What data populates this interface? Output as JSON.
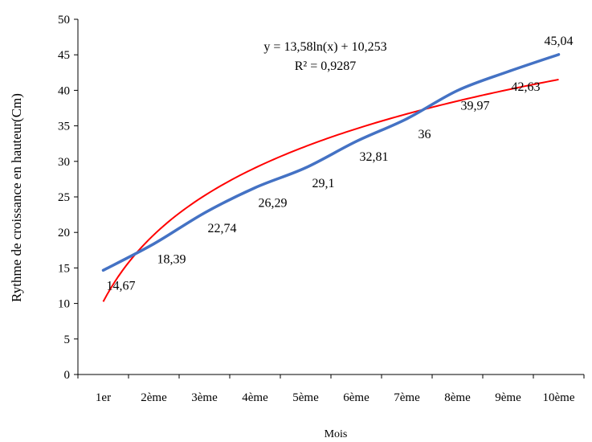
{
  "chart_data": {
    "type": "line",
    "categories": [
      "1er",
      "2ème",
      "3ème",
      "4ème",
      "5ème",
      "6ème",
      "7ème",
      "8ème",
      "9ème",
      "10ème"
    ],
    "series": [
      {
        "values": [
          14.67,
          18.39,
          22.74,
          26.29,
          29.1,
          32.81,
          36,
          39.97,
          42.63,
          45.04
        ],
        "color": "#4472C4"
      }
    ],
    "data_labels": [
      "14,67",
      "18,39",
      "22,74",
      "26,29",
      "29,1",
      "32,81",
      "36",
      "39,97",
      "42,63",
      "45,04"
    ],
    "trendline": {
      "type": "logarithmic",
      "a": 13.58,
      "b": 10.253,
      "color": "#FF0000",
      "equation": "y = 13,58ln(x) + 10,253",
      "r_squared": "R² = 0,9287"
    },
    "xlabel": "Mois",
    "ylabel": "Rythme de croissance en hauteur(Cm)",
    "ylim": [
      0,
      50
    ],
    "yticks": [
      "0",
      "5",
      "10",
      "15",
      "20",
      "25",
      "30",
      "35",
      "40",
      "45",
      "50"
    ],
    "grid": false,
    "legend": "none"
  }
}
